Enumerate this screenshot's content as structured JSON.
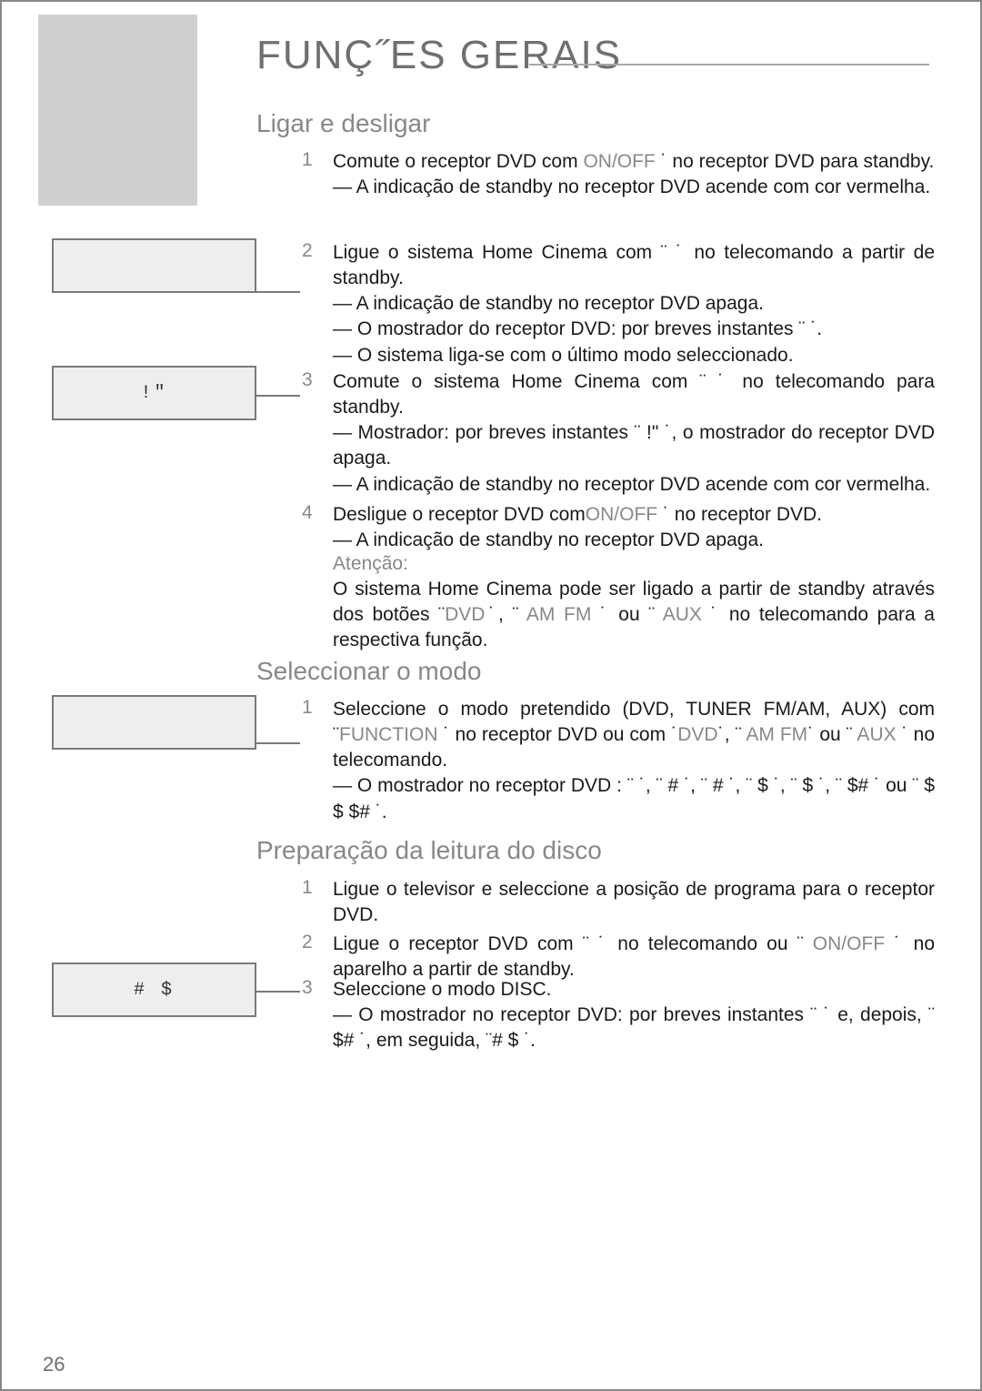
{
  "page_number": "26",
  "title": "FUNÇ˝ES GERAIS",
  "sections": {
    "s1": {
      "heading": "Ligar e desligar"
    },
    "s2": {
      "heading": "Seleccionar o modo"
    },
    "s3": {
      "heading": "Preparação da leitura do disco"
    }
  },
  "displays": {
    "d1": "        ",
    "d2": "   !\"     ",
    "d3": "         ",
    "d4": "  # $   "
  },
  "items": {
    "i1": {
      "num": "1",
      "l1a": "Comute o receptor DVD com ",
      "l1g": "ON/OFF",
      "l1b": " ˙ no receptor DVD para standby.",
      "s1": "— A indicação de standby no receptor DVD acende com cor vermelha."
    },
    "i2": {
      "num": "2",
      "l1": "Ligue o sistema Home Cinema com ¨ ˙ no telecomando a partir de standby.",
      "s1": "— A indicação de standby no receptor DVD apaga.",
      "s2": "— O  mostrador  do  receptor  DVD:  por  breves  instantes ¨              ˙.",
      "s3": "— O sistema liga-se com o último modo seleccionado."
    },
    "i3": {
      "num": "3",
      "l1": "Comute o sistema Home Cinema com ¨ ˙ no telecomando para standby.",
      "s1": "— Mostrador: por breves instantes ¨ !\"        ˙, o mostrador do receptor DVD apaga.",
      "s2": "— A indicação de standby no receptor DVD acende com cor vermelha."
    },
    "i4": {
      "num": "4",
      "l1a": "Desligue o receptor DVD com",
      "l1g": "ON/OFF",
      "l1b": " ˙ no receptor DVD.",
      "s1": "— A indicação de standby no receptor DVD apaga."
    },
    "note": {
      "heading": "Atenção:",
      "l1a": "O sistema Home Cinema pode ser ligado a partir de standby através dos botões ¨",
      "g1": "DVD",
      "l1b": "˙, ¨",
      "g2": " AM FM ",
      "l1c": "˙ ou ¨",
      "g3": " AUX ",
      "l1d": "˙ no telecomando para a respectiva função."
    },
    "i5": {
      "num": "1",
      "l1a": "Seleccione o modo pretendido (DVD, TUNER FM/AM, AUX) com ¨",
      "g1": "FUNCTION",
      "l1b": " ˙ no receptor DVD ou com ˙",
      "g2": "DVD",
      "l1c": "˙, ¨",
      "g3": " AM FM",
      "l1d": "˙ ou ¨",
      "g4": " AUX ",
      "l1e": "˙ no telecomando.",
      "s1": "— O  mostrador  no  receptor  DVD : ¨    ˙,  ¨   #          ˙, ¨   #        ˙, ¨   $        ˙, ¨  $         ˙, ¨      $#    ˙ ou ¨  $ $    $#   ˙."
    },
    "i6": {
      "num": "1",
      "l1": "Ligue o televisor e seleccione a posição de programa para o receptor DVD."
    },
    "i7": {
      "num": "2",
      "l1a": "Ligue  o  receptor  DVD  com  ¨ ˙  no  telecomando  ou ¨",
      "g1": " ON/OFF ",
      "l1b": "˙ no aparelho a partir de standby."
    },
    "i8": {
      "num": "3",
      "l1": "Seleccione o modo DISC.",
      "s1": "— O mostrador no receptor DVD: por breves instantes ¨ ˙ e, depois, ¨    $#     ˙, em seguida, ¨#  $      ˙."
    }
  }
}
